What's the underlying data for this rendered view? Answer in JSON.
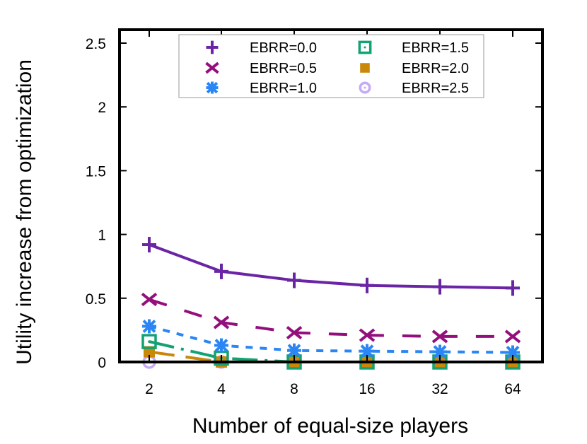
{
  "chart_data": {
    "type": "line",
    "title": "",
    "xlabel": "Number of equal-size players",
    "ylabel": "Utility increase from optimization",
    "categories": [
      "2",
      "4",
      "8",
      "16",
      "32",
      "64"
    ],
    "ylim": [
      0,
      2.6
    ],
    "yticks": [
      0,
      0.5,
      1,
      1.5,
      2,
      2.5
    ],
    "ytick_labels": [
      "0",
      "0.5",
      "1",
      "1.5",
      "2",
      "2.5"
    ],
    "grid": false,
    "legend_position": "top-center",
    "series": [
      {
        "name": "EBRR=0.0",
        "color": "#6a25a5",
        "marker": "plus",
        "dash": "",
        "values": [
          0.92,
          0.71,
          0.64,
          0.6,
          0.59,
          0.58
        ]
      },
      {
        "name": "EBRR=0.5",
        "color": "#930f7c",
        "marker": "cross",
        "dash": "26,26",
        "values": [
          0.49,
          0.31,
          0.23,
          0.21,
          0.2,
          0.2
        ]
      },
      {
        "name": "EBRR=1.0",
        "color": "#2a86f5",
        "marker": "star",
        "dash": "10,10",
        "values": [
          0.28,
          0.13,
          0.09,
          0.085,
          0.08,
          0.075
        ]
      },
      {
        "name": "EBRR=1.5",
        "color": "#13a273",
        "marker": "square-dot",
        "dash": "36,10,4,10",
        "values": [
          0.16,
          0.03,
          0.0,
          0.0,
          0.0,
          0.0
        ]
      },
      {
        "name": "EBRR=2.0",
        "color": "#c9880a",
        "marker": "filled-square",
        "dash": "36,16",
        "values": [
          0.08,
          0.0,
          0.0,
          0.0,
          0.0,
          0.0
        ]
      },
      {
        "name": "EBRR=2.5",
        "color": "#c6aaf5",
        "marker": "circle-dot",
        "dash": "6,6",
        "values": [
          0.0,
          0.0,
          0.0,
          0.0,
          0.0,
          0.0
        ]
      }
    ]
  },
  "legend": {
    "items": [
      {
        "label": "EBRR=0.0"
      },
      {
        "label": "EBRR=0.5"
      },
      {
        "label": "EBRR=1.0"
      },
      {
        "label": "EBRR=1.5"
      },
      {
        "label": "EBRR=2.0"
      },
      {
        "label": "EBRR=2.5"
      }
    ]
  },
  "axes": {
    "xlabel": "Number of equal-size players",
    "ylabel": "Utility increase from optimization"
  }
}
